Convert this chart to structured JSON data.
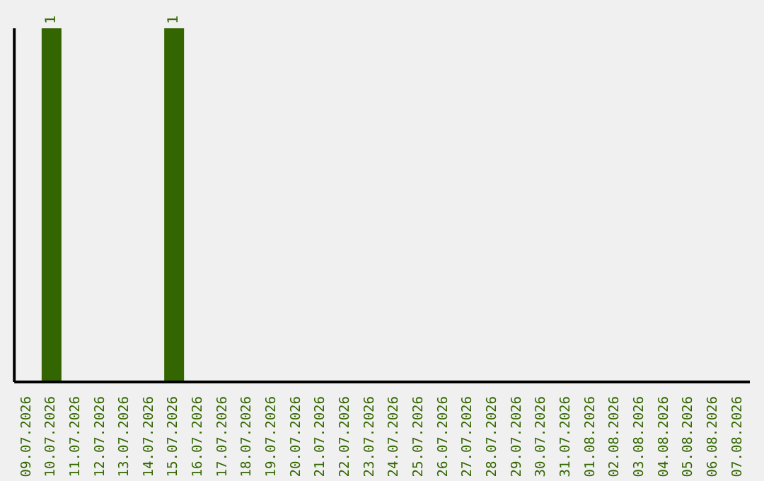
{
  "chart_data": {
    "type": "bar",
    "categories": [
      "09.07.2026",
      "10.07.2026",
      "11.07.2026",
      "12.07.2026",
      "13.07.2026",
      "14.07.2026",
      "15.07.2026",
      "16.07.2026",
      "17.07.2026",
      "18.07.2026",
      "19.07.2026",
      "20.07.2026",
      "21.07.2026",
      "22.07.2026",
      "23.07.2026",
      "24.07.2026",
      "25.07.2026",
      "26.07.2026",
      "27.07.2026",
      "28.07.2026",
      "29.07.2026",
      "30.07.2026",
      "31.07.2026",
      "01.08.2026",
      "02.08.2026",
      "03.08.2026",
      "04.08.2026",
      "05.08.2026",
      "06.08.2026",
      "07.08.2026"
    ],
    "values": [
      0,
      1,
      0,
      0,
      0,
      0,
      1,
      0,
      0,
      0,
      0,
      0,
      0,
      0,
      0,
      0,
      0,
      0,
      0,
      0,
      0,
      0,
      0,
      0,
      0,
      0,
      0,
      0,
      0,
      0
    ],
    "value_labels": [
      null,
      "1",
      null,
      null,
      null,
      null,
      "1",
      null,
      null,
      null,
      null,
      null,
      null,
      null,
      null,
      null,
      null,
      null,
      null,
      null,
      null,
      null,
      null,
      null,
      null,
      null,
      null,
      null,
      null,
      null
    ],
    "color": "#336600",
    "ylim": [
      0,
      1
    ],
    "tick_labels": "x"
  }
}
